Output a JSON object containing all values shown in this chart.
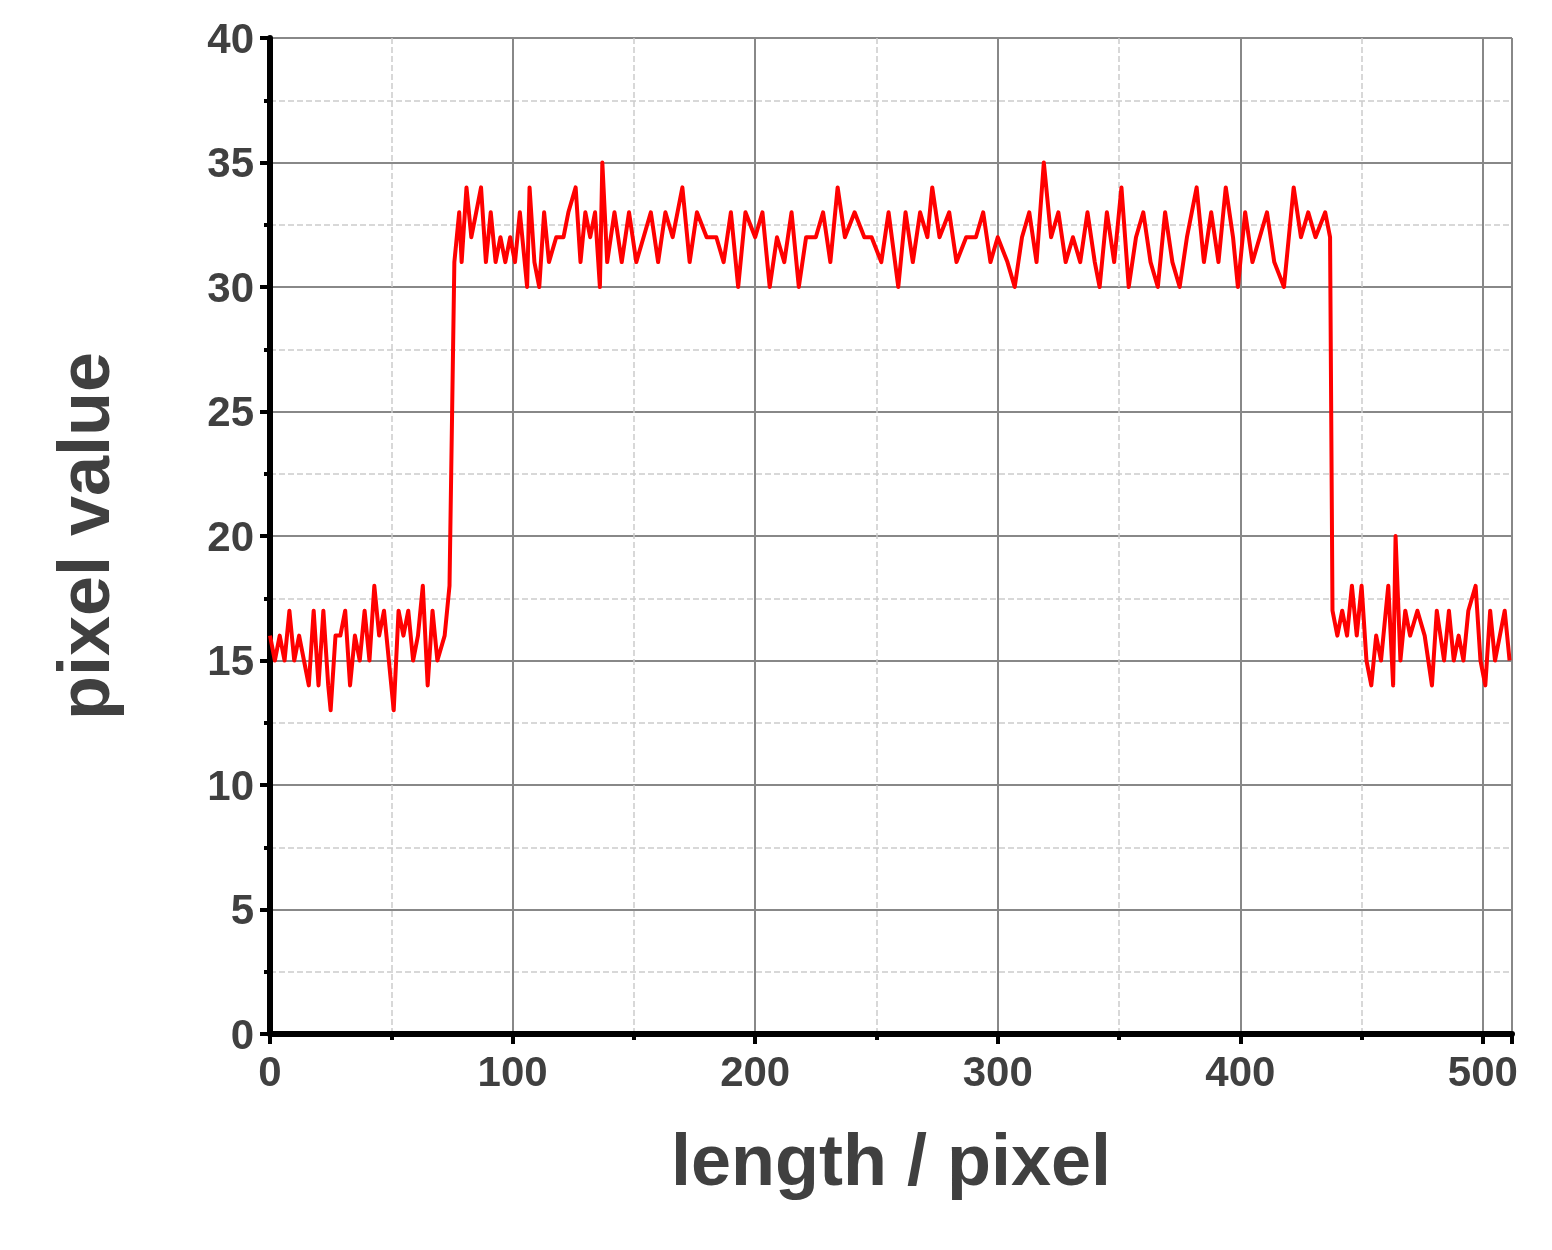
{
  "chart_data": {
    "type": "line",
    "xlabel": "length / pixel",
    "ylabel": "pixel value",
    "xlim": [
      0,
      512
    ],
    "ylim": [
      0,
      40
    ],
    "xticks": [
      0,
      100,
      200,
      300,
      400,
      500
    ],
    "yticks": [
      0,
      5,
      10,
      15,
      20,
      25,
      30,
      35,
      40
    ],
    "grid": true,
    "marker": "none",
    "x": [
      0,
      2,
      4,
      6,
      8,
      10,
      12,
      14,
      16,
      18,
      20,
      22,
      24,
      25,
      27,
      29,
      31,
      33,
      35,
      37,
      39,
      41,
      43,
      45,
      47,
      49,
      51,
      53,
      55,
      57,
      59,
      61,
      63,
      65,
      67,
      69,
      72,
      74,
      76,
      78,
      79,
      81,
      83,
      85,
      87,
      89,
      91,
      93,
      95,
      97,
      99,
      101,
      103,
      106,
      107,
      109,
      111,
      113,
      115,
      118,
      121,
      123,
      126,
      128,
      130,
      132,
      134,
      136,
      137,
      139,
      142,
      145,
      148,
      151,
      154,
      157,
      160,
      163,
      166,
      170,
      173,
      176,
      180,
      184,
      187,
      190,
      193,
      196,
      200,
      203,
      206,
      209,
      212,
      215,
      218,
      221,
      225,
      228,
      231,
      234,
      237,
      241,
      245,
      248,
      252,
      255,
      259,
      262,
      265,
      268,
      271,
      273,
      276,
      280,
      283,
      287,
      291,
      294,
      297,
      300,
      304,
      307,
      310,
      313,
      316,
      319,
      322,
      325,
      328,
      331,
      334,
      337,
      340,
      342,
      345,
      348,
      351,
      354,
      357,
      360,
      363,
      366,
      369,
      372,
      375,
      378,
      382,
      385,
      388,
      391,
      394,
      397,
      399,
      402,
      405,
      408,
      411,
      414,
      418,
      422,
      425,
      428,
      431,
      435,
      437,
      438,
      440,
      442,
      444,
      446,
      448,
      450,
      452,
      454,
      456,
      458,
      461,
      463,
      464,
      466,
      468,
      470,
      473,
      476,
      479,
      481,
      484,
      486,
      488,
      490,
      492,
      494,
      497,
      499,
      501,
      503,
      505,
      507,
      509,
      511
    ],
    "series": [
      {
        "color": "#ff0000",
        "values": [
          16,
          15,
          16,
          15,
          17,
          15,
          16,
          15,
          14,
          17,
          14,
          17,
          14,
          13,
          16,
          16,
          17,
          14,
          16,
          15,
          17,
          15,
          18,
          16,
          17,
          15,
          13,
          17,
          16,
          17,
          15,
          16,
          18,
          14,
          17,
          15,
          16,
          18,
          31,
          33,
          31,
          34,
          32,
          33,
          34,
          31,
          33,
          31,
          32,
          31,
          32,
          31,
          33,
          30,
          34,
          31,
          30,
          33,
          31,
          32,
          32,
          33,
          34,
          31,
          33,
          32,
          33,
          30,
          35,
          31,
          33,
          31,
          33,
          31,
          32,
          33,
          31,
          33,
          32,
          34,
          31,
          33,
          32,
          32,
          31,
          33,
          30,
          33,
          32,
          33,
          30,
          32,
          31,
          33,
          30,
          32,
          32,
          33,
          31,
          34,
          32,
          33,
          32,
          32,
          31,
          33,
          30,
          33,
          31,
          33,
          32,
          34,
          32,
          33,
          31,
          32,
          32,
          33,
          31,
          32,
          31,
          30,
          32,
          33,
          31,
          35,
          32,
          33,
          31,
          32,
          31,
          33,
          31,
          30,
          33,
          31,
          34,
          30,
          32,
          33,
          31,
          30,
          33,
          31,
          30,
          32,
          34,
          31,
          33,
          31,
          34,
          32,
          30,
          33,
          31,
          32,
          33,
          31,
          30,
          34,
          32,
          33,
          32,
          33,
          32,
          17,
          16,
          17,
          16,
          18,
          16,
          18,
          15,
          14,
          16,
          15,
          18,
          14,
          20,
          15,
          17,
          16,
          17,
          16,
          14,
          17,
          15,
          17,
          15,
          16,
          15,
          17,
          18,
          15,
          14,
          17,
          15,
          16,
          17,
          15
        ]
      }
    ]
  }
}
